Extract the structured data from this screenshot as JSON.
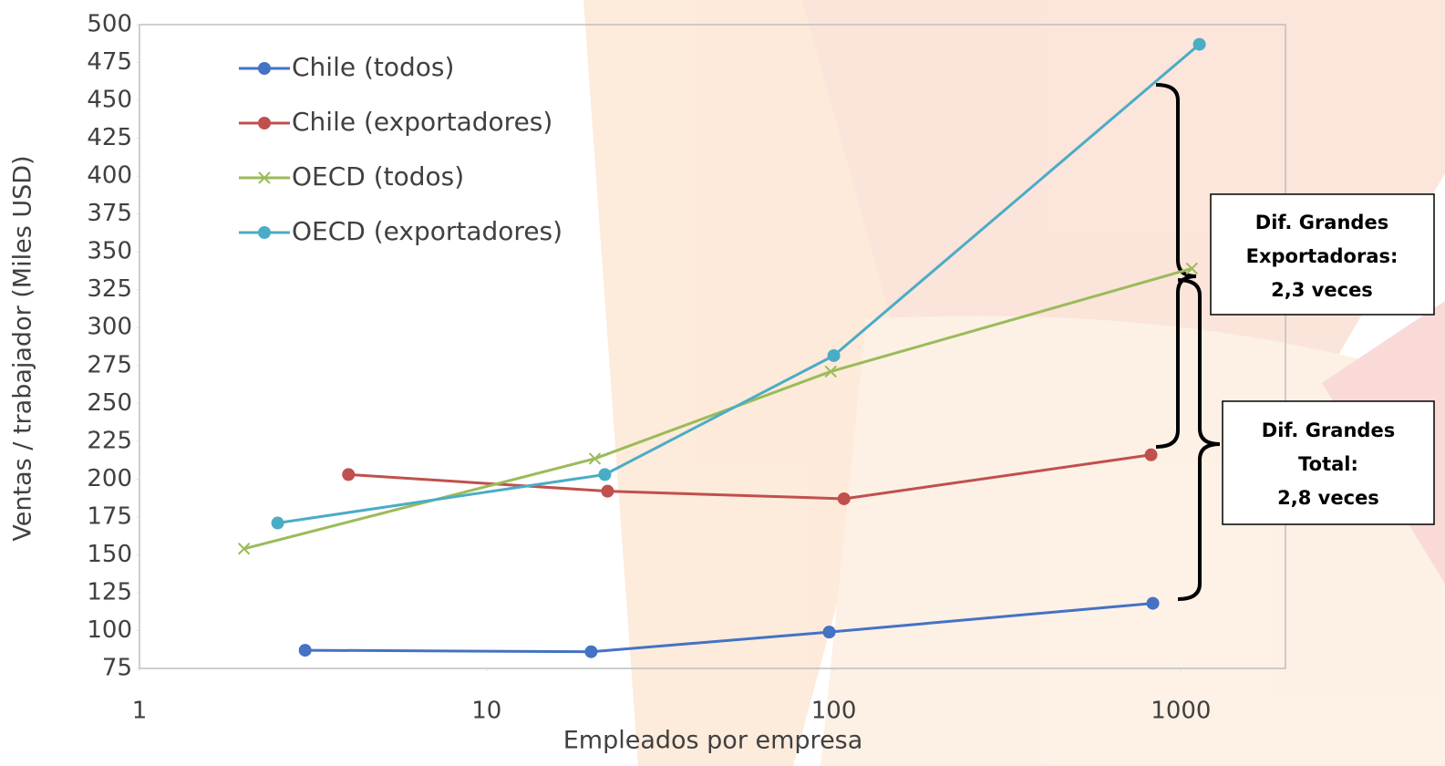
{
  "chart_data": {
    "type": "line",
    "x_label": "Empleados por empresa",
    "y_label": "Ventas / trabajador (Miles USD)",
    "xscale": "log",
    "xlim": [
      1,
      2000
    ],
    "xticks": [
      1,
      10,
      100,
      1000
    ],
    "ylim": [
      75,
      500
    ],
    "yticks": [
      75,
      100,
      125,
      150,
      175,
      200,
      225,
      250,
      275,
      300,
      325,
      350,
      375,
      400,
      425,
      450,
      475,
      500
    ],
    "grid": false,
    "legend": "top-left",
    "series": [
      {
        "name": "Chile (todos)",
        "color": "#4472c4",
        "marker": "circle",
        "x": [
          3,
          20,
          97,
          830
        ],
        "values": [
          87,
          86,
          99,
          118
        ]
      },
      {
        "name": "Chile (exportadores)",
        "color": "#c0504d",
        "marker": "circle",
        "x": [
          4,
          22.3,
          107,
          820
        ],
        "values": [
          203,
          192,
          187,
          216
        ]
      },
      {
        "name": "OECD (todos)",
        "color": "#9bbb59",
        "marker": "x",
        "x": [
          2,
          20.5,
          98,
          1075
        ],
        "values": [
          154,
          213.5,
          271,
          339
        ]
      },
      {
        "name": "OECD (exportadores)",
        "color": "#4bacc6",
        "marker": "circle",
        "x": [
          2.5,
          21.9,
          100,
          1130
        ],
        "values": [
          171,
          203,
          281.5,
          487
        ]
      }
    ],
    "annotations": [
      {
        "lines": [
          "Dif. Grandes",
          "Exportadoras:",
          "2,3 veces"
        ]
      },
      {
        "lines": [
          "Dif. Grandes",
          "Total:",
          "2,8 veces"
        ]
      }
    ]
  }
}
